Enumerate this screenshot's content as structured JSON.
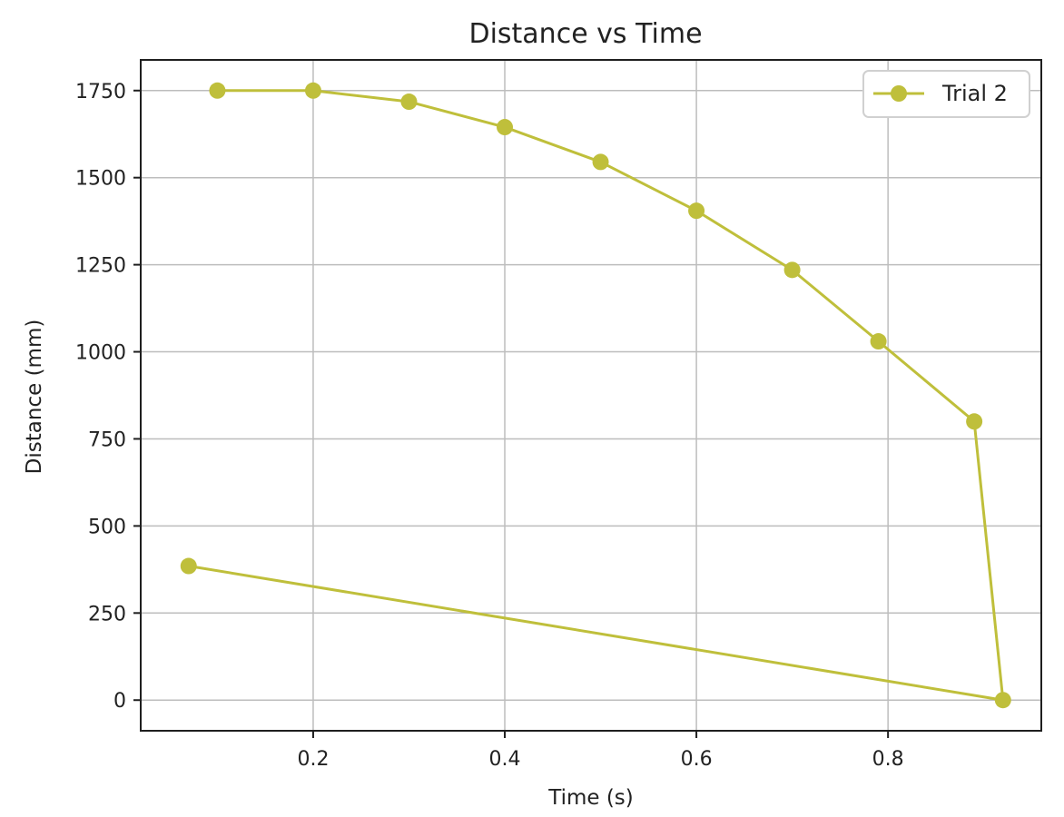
{
  "chart_data": {
    "type": "line",
    "title": "Distance vs Time",
    "xlabel": "Time (s)",
    "ylabel": "Distance (mm)",
    "xlim": [
      0.02,
      0.96
    ],
    "ylim": [
      -88,
      1838
    ],
    "xticks": [
      0.2,
      0.4,
      0.6,
      0.8
    ],
    "xtick_labels": [
      "0.2",
      "0.4",
      "0.6",
      "0.8"
    ],
    "yticks": [
      0,
      250,
      500,
      750,
      1000,
      1250,
      1500,
      1750
    ],
    "ytick_labels": [
      "0",
      "250",
      "500",
      "750",
      "1000",
      "1250",
      "1500",
      "1750"
    ],
    "grid": true,
    "legend_position": "top-right",
    "series": [
      {
        "name": "Trial 2",
        "color": "#bfbf3b",
        "marker": "circle",
        "points": [
          {
            "x": 0.1,
            "y": 1750
          },
          {
            "x": 0.2,
            "y": 1750
          },
          {
            "x": 0.3,
            "y": 1718
          },
          {
            "x": 0.4,
            "y": 1645
          },
          {
            "x": 0.5,
            "y": 1545
          },
          {
            "x": 0.6,
            "y": 1405
          },
          {
            "x": 0.7,
            "y": 1235
          },
          {
            "x": 0.79,
            "y": 1030
          },
          {
            "x": 0.89,
            "y": 800
          },
          {
            "x": 0.92,
            "y": 0
          },
          {
            "x": 0.07,
            "y": 385
          }
        ]
      }
    ]
  }
}
